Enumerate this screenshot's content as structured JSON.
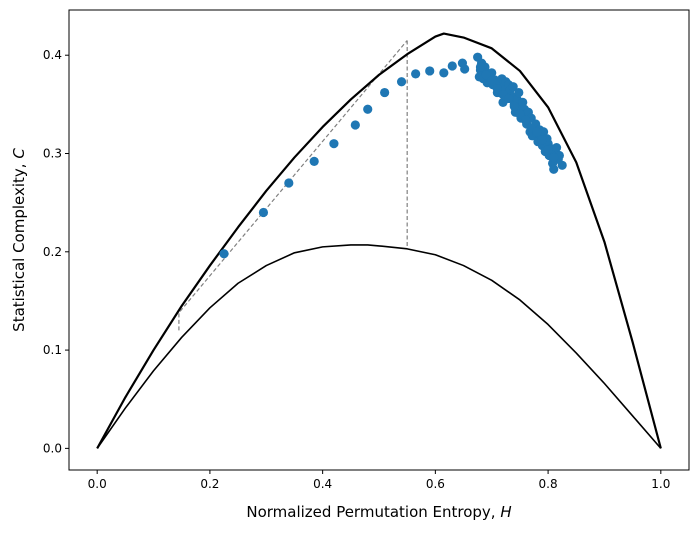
{
  "chart_data": {
    "type": "scatter",
    "title": "",
    "xlabel": "Normalized Permutation Entropy, ",
    "xlabel_var": "H",
    "ylabel": "Statistical Complexity, ",
    "ylabel_var": "C",
    "xlim": [
      -0.05,
      1.05
    ],
    "ylim": [
      -0.022,
      0.446
    ],
    "x_ticks": [
      "0.0",
      "0.2",
      "0.4",
      "0.6",
      "0.8",
      "1.0"
    ],
    "x_tick_values": [
      0.0,
      0.2,
      0.4,
      0.6,
      0.8,
      1.0
    ],
    "y_ticks": [
      "0.0",
      "0.1",
      "0.2",
      "0.3",
      "0.4"
    ],
    "y_tick_values": [
      0.0,
      0.1,
      0.2,
      0.3,
      0.4
    ],
    "grid": false,
    "legend": "none",
    "colors": {
      "points": "#1f77b4",
      "bounds": "#000000",
      "guides": "#808080"
    },
    "curves": [
      {
        "name": "",
        "role": "upper bound",
        "x": [
          0.0,
          0.05,
          0.1,
          0.15,
          0.2,
          0.25,
          0.3,
          0.35,
          0.4,
          0.45,
          0.5,
          0.55,
          0.6,
          0.615,
          0.65,
          0.7,
          0.75,
          0.8,
          0.85,
          0.9,
          0.95,
          1.0
        ],
        "y": [
          0.0,
          0.052,
          0.1,
          0.145,
          0.186,
          0.225,
          0.262,
          0.296,
          0.327,
          0.355,
          0.38,
          0.401,
          0.419,
          0.422,
          0.418,
          0.407,
          0.384,
          0.347,
          0.291,
          0.21,
          0.108,
          0.0
        ]
      },
      {
        "name": "",
        "role": "lower bound",
        "x": [
          0.0,
          0.05,
          0.1,
          0.15,
          0.2,
          0.25,
          0.3,
          0.35,
          0.4,
          0.45,
          0.48,
          0.5,
          0.55,
          0.6,
          0.65,
          0.7,
          0.75,
          0.8,
          0.85,
          0.9,
          0.95,
          1.0
        ],
        "y": [
          0.0,
          0.041,
          0.079,
          0.113,
          0.143,
          0.168,
          0.186,
          0.199,
          0.205,
          0.207,
          0.207,
          0.206,
          0.203,
          0.197,
          0.186,
          0.171,
          0.151,
          0.126,
          0.097,
          0.066,
          0.033,
          0.0
        ]
      }
    ],
    "guides": [
      {
        "x": [
          0.145,
          0.145,
          0.55
        ],
        "y": [
          0.12,
          0.138,
          0.415
        ]
      },
      {
        "x": [
          0.55,
          0.55
        ],
        "y": [
          0.415,
          0.205
        ]
      }
    ],
    "series": [
      {
        "name": "",
        "x": [
          0.225,
          0.295,
          0.34,
          0.385,
          0.42,
          0.458,
          0.48,
          0.51,
          0.54,
          0.565,
          0.59,
          0.615,
          0.63,
          0.648,
          0.652,
          0.675,
          0.678,
          0.68,
          0.682,
          0.685,
          0.688,
          0.69,
          0.692,
          0.695,
          0.698,
          0.7,
          0.702,
          0.705,
          0.708,
          0.71,
          0.712,
          0.715,
          0.718,
          0.72,
          0.722,
          0.725,
          0.728,
          0.73,
          0.732,
          0.735,
          0.738,
          0.74,
          0.742,
          0.745,
          0.748,
          0.75,
          0.752,
          0.755,
          0.758,
          0.76,
          0.762,
          0.765,
          0.768,
          0.77,
          0.772,
          0.775,
          0.778,
          0.78,
          0.782,
          0.785,
          0.788,
          0.79,
          0.792,
          0.795,
          0.798,
          0.8,
          0.802,
          0.805,
          0.808,
          0.81,
          0.812,
          0.815,
          0.818,
          0.82,
          0.825,
          0.68,
          0.69,
          0.7,
          0.71,
          0.72,
          0.73,
          0.74,
          0.75,
          0.76,
          0.77,
          0.78,
          0.79,
          0.8,
          0.81
        ],
        "y": [
          0.198,
          0.24,
          0.27,
          0.292,
          0.31,
          0.329,
          0.345,
          0.362,
          0.373,
          0.381,
          0.384,
          0.382,
          0.389,
          0.392,
          0.386,
          0.398,
          0.378,
          0.385,
          0.392,
          0.376,
          0.388,
          0.382,
          0.372,
          0.378,
          0.375,
          0.382,
          0.37,
          0.375,
          0.368,
          0.362,
          0.372,
          0.365,
          0.376,
          0.352,
          0.368,
          0.373,
          0.36,
          0.37,
          0.364,
          0.358,
          0.368,
          0.35,
          0.342,
          0.355,
          0.362,
          0.348,
          0.336,
          0.352,
          0.345,
          0.34,
          0.33,
          0.342,
          0.322,
          0.336,
          0.318,
          0.325,
          0.33,
          0.32,
          0.312,
          0.324,
          0.318,
          0.308,
          0.322,
          0.302,
          0.315,
          0.31,
          0.298,
          0.305,
          0.29,
          0.284,
          0.3,
          0.306,
          0.294,
          0.298,
          0.288,
          0.388,
          0.38,
          0.374,
          0.366,
          0.36,
          0.356,
          0.348,
          0.34,
          0.334,
          0.326,
          0.322,
          0.314,
          0.304,
          0.296
        ]
      }
    ]
  }
}
